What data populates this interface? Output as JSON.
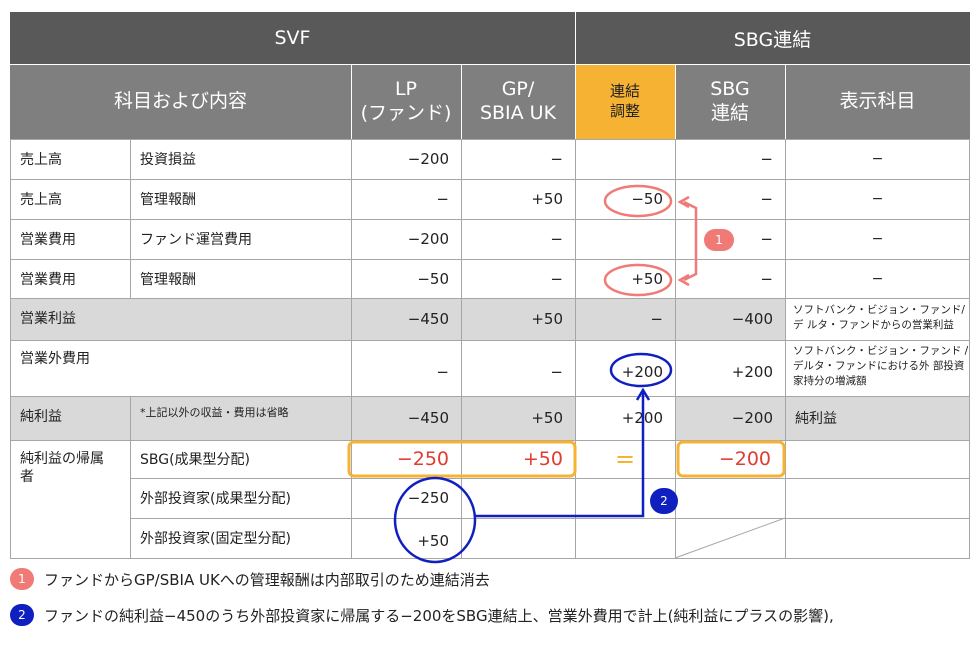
{
  "header": {
    "svf": "SVF",
    "sbg": "SBG連結",
    "subject": "科目および内容",
    "lp": [
      "LP",
      "(ファンド)"
    ],
    "gp": [
      "GP/",
      "SBIA UK"
    ],
    "adjust": [
      "連結",
      "調整"
    ],
    "sbg_consol": [
      "SBG",
      "連結"
    ],
    "display": "表示科目"
  },
  "rows": [
    {
      "item": "売上高",
      "content": "投資損益",
      "lp": "−200",
      "gp": "−",
      "adj": "",
      "sbg": "−",
      "disp": "−"
    },
    {
      "item": "売上高",
      "content": "管理報酬",
      "lp": "−",
      "gp": "+50",
      "adj": "−50",
      "sbg": "−",
      "disp": "−"
    },
    {
      "item": "営業費用",
      "content": "ファンド運営費用",
      "lp": "−200",
      "gp": "−",
      "adj": "",
      "sbg": "−",
      "disp": "−"
    },
    {
      "item": "営業費用",
      "content": "管理報酬",
      "lp": "−50",
      "gp": "−",
      "adj": "+50",
      "sbg": "−",
      "disp": "−"
    },
    {
      "item": "営業利益",
      "content": "",
      "lp": "−450",
      "gp": "+50",
      "adj": "−",
      "sbg": "−400",
      "disp": "ソフトバンク・ビジョン・ファンド/デ ルタ・ファンドからの営業利益"
    },
    {
      "item": "営業外費用",
      "content": "",
      "lp": "−",
      "gp": "−",
      "adj": "+200",
      "sbg": "+200",
      "disp": "ソフトバンク・ビジョン・ファンド /デルタ・ファンドにおける外 部投資家持分の増減額"
    },
    {
      "item": "純利益",
      "content": "*上記以外の収益・費用は省略",
      "lp": "−450",
      "gp": "+50",
      "adj": "+200",
      "sbg": "−200",
      "disp": "純利益"
    }
  ],
  "attrib": {
    "item": "純利益の帰属者",
    "rows": [
      {
        "content": "SBG(成果型分配)",
        "lp": "−250",
        "gp": "+50",
        "adj": "=",
        "sbg": "−200"
      },
      {
        "content": "外部投資家(成果型分配)",
        "lp": "−250"
      },
      {
        "content": "外部投資家(固定型分配)",
        "lp": "+50"
      }
    ]
  },
  "badges": {
    "one": "1",
    "two": "2"
  },
  "notes": [
    {
      "num": "1",
      "text": "ファンドからGP/SBIA UKへの管理報酬は内部取引のため連結消去"
    },
    {
      "num": "2",
      "text": "ファンドの純利益−450のうち外部投資家に帰属する−200をSBG連結上、営業外費用で計上(純利益にプラスの影響),"
    }
  ],
  "colors": {
    "header_dark": "#595959",
    "header_mid": "#7f7f7f",
    "orange": "#f5b233",
    "red": "#e03c31",
    "red_circle": "#f07a76",
    "blue": "#1020c0"
  }
}
